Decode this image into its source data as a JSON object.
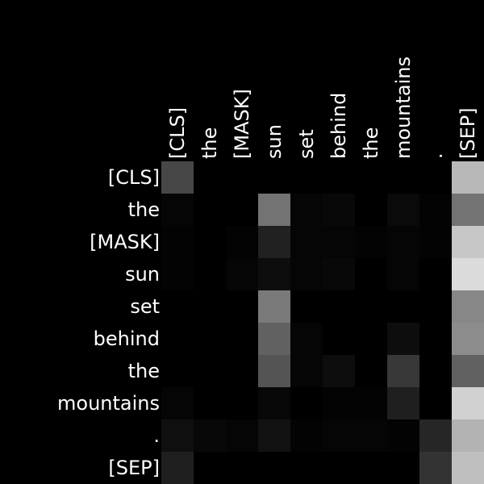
{
  "chart_data": {
    "type": "heatmap",
    "title": "",
    "xlabel": "",
    "ylabel": "",
    "x_tokens": [
      "[CLS]",
      "the",
      "[MASK]",
      "sun",
      "set",
      "behind",
      "the",
      "mountains",
      ".",
      "[SEP]"
    ],
    "y_tokens": [
      "[CLS]",
      "the",
      "[MASK]",
      "sun",
      "set",
      "behind",
      "the",
      "mountains",
      ".",
      "[SEP]"
    ],
    "value_range": [
      0,
      1
    ],
    "colormap": "black-to-white grayscale",
    "x_tick_position": "top, rotated vertical",
    "y_tick_position": "left, right-aligned",
    "values": [
      [
        0.28,
        0.0,
        0.0,
        0.0,
        0.0,
        0.0,
        0.0,
        0.0,
        0.0,
        0.72
      ],
      [
        0.02,
        0.0,
        0.0,
        0.45,
        0.02,
        0.03,
        0.0,
        0.04,
        0.01,
        0.45
      ],
      [
        0.01,
        0.0,
        0.01,
        0.13,
        0.02,
        0.02,
        0.01,
        0.02,
        0.01,
        0.78
      ],
      [
        0.01,
        0.0,
        0.02,
        0.05,
        0.02,
        0.03,
        0.0,
        0.02,
        0.0,
        0.86
      ],
      [
        0.0,
        0.0,
        0.0,
        0.48,
        0.0,
        0.0,
        0.0,
        0.0,
        0.0,
        0.53
      ],
      [
        0.0,
        0.0,
        0.0,
        0.38,
        0.02,
        0.0,
        0.0,
        0.05,
        0.0,
        0.55
      ],
      [
        0.0,
        0.0,
        0.0,
        0.33,
        0.02,
        0.05,
        0.0,
        0.22,
        0.0,
        0.38
      ],
      [
        0.02,
        0.0,
        0.0,
        0.03,
        0.0,
        0.01,
        0.01,
        0.12,
        0.0,
        0.82
      ],
      [
        0.06,
        0.03,
        0.02,
        0.07,
        0.01,
        0.02,
        0.02,
        0.01,
        0.15,
        0.7
      ],
      [
        0.12,
        0.0,
        0.0,
        0.0,
        0.0,
        0.0,
        0.0,
        0.0,
        0.2,
        0.75
      ]
    ]
  }
}
